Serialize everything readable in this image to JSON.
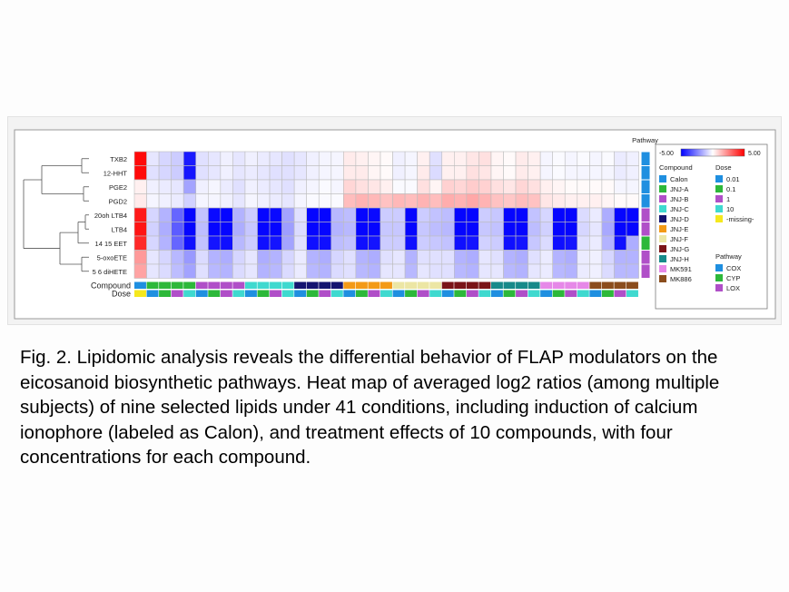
{
  "caption": "Fig. 2. Lipidomic analysis reveals the differential behavior of FLAP modulators on the eicosanoid biosynthetic pathways. Heat map of averaged log2 ratios (among multiple subjects) of nine selected lipids under 41 conditions, including induction of calcium ionophore (labeled as Calon), and treatment effects of 10 compounds, with four concentrations for each compound.",
  "colors": {
    "low": "#0000ff",
    "mid": "#ffffff",
    "high": "#ff0000",
    "compounds": {
      "Calon": "#1f8fe0",
      "JNJ-A": "#2db83a",
      "JNJ-B": "#b04fc8",
      "JNJ-C": "#3fd9cf",
      "JNJ-D": "#141470",
      "JNJ-E": "#f39a16",
      "JNJ-F": "#ece6a4",
      "JNJ-G": "#7a1417",
      "JNJ-H": "#178a8a",
      "MK591": "#e688e8",
      "MK886": "#8b4d1d"
    },
    "dose": {
      "0.01": "#1f8fe0",
      "0.1": "#2db83a",
      "1": "#b04fc8",
      "10": "#3fd9cf",
      "-missing-": "#f5e81e"
    },
    "pathway": {
      "COX": "#1f8fe0",
      "CYP": "#2db83a",
      "LOX": "#b04fc8"
    }
  },
  "chart_data": {
    "type": "heatmap",
    "title": "",
    "rows": [
      "TXB2",
      "12-HHT",
      "PGE2",
      "PGD2",
      "20oh LTB4",
      "LTB4",
      "14 15 EET",
      "5-oxoETE",
      "5 6 diHETE"
    ],
    "row_pathway": [
      "COX",
      "COX",
      "COX",
      "COX",
      "LOX",
      "LOX",
      "CYP",
      "LOX",
      "LOX"
    ],
    "column_compound": [
      "Calon",
      "JNJ-A",
      "JNJ-A",
      "JNJ-A",
      "JNJ-A",
      "JNJ-B",
      "JNJ-B",
      "JNJ-B",
      "JNJ-B",
      "JNJ-C",
      "JNJ-C",
      "JNJ-C",
      "JNJ-C",
      "JNJ-D",
      "JNJ-D",
      "JNJ-D",
      "JNJ-D",
      "JNJ-E",
      "JNJ-E",
      "JNJ-E",
      "JNJ-E",
      "JNJ-F",
      "JNJ-F",
      "JNJ-F",
      "JNJ-F",
      "JNJ-G",
      "JNJ-G",
      "JNJ-G",
      "JNJ-G",
      "JNJ-H",
      "JNJ-H",
      "JNJ-H",
      "JNJ-H",
      "MK591",
      "MK591",
      "MK591",
      "MK591",
      "MK886",
      "MK886",
      "MK886",
      "MK886"
    ],
    "column_dose": [
      "-missing-",
      "0.01",
      "0.1",
      "1",
      "10",
      "0.01",
      "0.1",
      "1",
      "10",
      "0.01",
      "0.1",
      "1",
      "10",
      "0.01",
      "0.1",
      "1",
      "10",
      "0.01",
      "0.1",
      "1",
      "10",
      "0.01",
      "0.1",
      "1",
      "10",
      "0.01",
      "0.1",
      "1",
      "10",
      "0.01",
      "0.1",
      "1",
      "10",
      "0.01",
      "0.1",
      "1",
      "10",
      "0.01",
      "0.1",
      "1",
      "10"
    ],
    "values": [
      [
        4.8,
        -0.5,
        -0.8,
        -1.0,
        -4.5,
        -0.6,
        -0.5,
        -0.3,
        -0.5,
        -0.3,
        -0.4,
        -0.5,
        -0.6,
        -0.5,
        -0.3,
        -0.2,
        -0.2,
        0.4,
        0.3,
        0.2,
        0.1,
        -0.3,
        -0.2,
        0.3,
        -0.6,
        0.3,
        0.3,
        0.5,
        0.6,
        0.2,
        0.1,
        0.4,
        0.3,
        -0.2,
        -0.1,
        -0.2,
        -0.1,
        -0.2,
        -0.1,
        -0.4,
        -0.3
      ],
      [
        4.8,
        -0.6,
        -0.8,
        -1.0,
        -4.6,
        -0.6,
        -0.5,
        -0.3,
        -0.5,
        -0.4,
        -0.5,
        -0.6,
        -0.6,
        -0.5,
        -0.3,
        -0.2,
        -0.2,
        0.4,
        0.4,
        0.2,
        0.1,
        -0.3,
        -0.2,
        0.4,
        -0.7,
        0.3,
        0.3,
        0.6,
        0.5,
        0.2,
        0.1,
        0.4,
        0.3,
        -0.2,
        -0.1,
        -0.2,
        -0.2,
        -0.2,
        -0.2,
        -0.4,
        -0.3
      ],
      [
        0.3,
        -0.3,
        -0.4,
        -0.5,
        -1.8,
        -0.3,
        -0.2,
        -0.4,
        -0.6,
        -0.3,
        -0.4,
        -0.5,
        -0.6,
        -0.3,
        -0.2,
        -0.1,
        -0.2,
        0.8,
        0.6,
        0.5,
        0.3,
        -0.1,
        -0.1,
        0.6,
        0.2,
        0.9,
        0.8,
        1.0,
        0.9,
        0.6,
        0.5,
        0.8,
        0.6,
        0.3,
        0.2,
        0.1,
        0.1,
        0.1,
        0.1,
        -0.2,
        -0.2
      ],
      [
        0.4,
        -0.2,
        -0.3,
        -0.4,
        -0.9,
        -0.2,
        -0.2,
        -0.3,
        -0.5,
        -0.2,
        -0.3,
        -0.4,
        -0.5,
        -0.2,
        -0.1,
        -0.1,
        -0.1,
        1.3,
        1.5,
        1.4,
        1.2,
        1.4,
        1.3,
        1.5,
        1.3,
        1.6,
        1.5,
        1.7,
        1.5,
        1.2,
        1.1,
        1.3,
        1.2,
        0.5,
        0.4,
        0.3,
        0.3,
        0.3,
        0.2,
        0.1,
        0.1
      ],
      [
        4.5,
        -0.8,
        -1.5,
        -3.0,
        -4.9,
        -1.2,
        -4.8,
        -4.9,
        -1.5,
        -1.0,
        -4.9,
        -4.8,
        -1.8,
        -0.6,
        -4.9,
        -4.9,
        -1.4,
        -1.3,
        -4.9,
        -4.8,
        -1.0,
        -1.0,
        -4.9,
        -1.0,
        -1.2,
        -1.3,
        -4.9,
        -4.9,
        -1.0,
        -1.1,
        -4.9,
        -4.9,
        -1.2,
        -0.8,
        -4.9,
        -4.9,
        -0.7,
        -0.4,
        -1.6,
        -4.9,
        -4.9
      ],
      [
        4.6,
        -0.9,
        -1.6,
        -3.2,
        -4.9,
        -1.3,
        -4.9,
        -4.9,
        -1.6,
        -1.1,
        -4.9,
        -4.9,
        -1.9,
        -0.7,
        -4.9,
        -4.9,
        -1.5,
        -1.4,
        -4.9,
        -4.9,
        -1.1,
        -1.1,
        -4.9,
        -1.1,
        -1.3,
        -1.4,
        -4.9,
        -4.9,
        -1.1,
        -1.2,
        -4.9,
        -4.9,
        -1.3,
        -0.9,
        -4.9,
        -4.9,
        -0.8,
        -0.5,
        -1.7,
        -4.9,
        -4.9
      ],
      [
        4.2,
        -0.8,
        -1.5,
        -3.0,
        -4.7,
        -1.2,
        -4.6,
        -4.7,
        -1.4,
        -1.0,
        -4.7,
        -4.6,
        -1.8,
        -0.6,
        -4.7,
        -4.7,
        -1.3,
        -1.2,
        -4.7,
        -4.6,
        -1.0,
        -1.0,
        -4.7,
        -1.0,
        -1.1,
        -1.2,
        -4.7,
        -4.6,
        -0.9,
        -1.0,
        -4.7,
        -4.6,
        -1.1,
        -0.7,
        -4.7,
        -4.6,
        -0.6,
        -0.4,
        -1.5,
        -4.7,
        -1.6
      ],
      [
        2.0,
        -0.5,
        -0.8,
        -1.4,
        -2.0,
        -0.7,
        -1.5,
        -1.6,
        -0.8,
        -0.5,
        -1.6,
        -1.5,
        -0.8,
        -0.4,
        -1.5,
        -1.6,
        -0.8,
        -0.6,
        -1.5,
        -1.6,
        -0.6,
        -0.5,
        -1.5,
        -0.6,
        -0.6,
        -0.6,
        -1.5,
        -1.6,
        -0.5,
        -0.6,
        -1.5,
        -1.6,
        -0.6,
        -0.4,
        -1.5,
        -1.6,
        -0.4,
        -0.3,
        -0.8,
        -1.5,
        -1.5
      ],
      [
        1.8,
        -0.5,
        -0.7,
        -1.3,
        -1.8,
        -0.6,
        -1.4,
        -1.5,
        -0.7,
        -0.5,
        -1.5,
        -1.4,
        -0.7,
        -0.4,
        -1.4,
        -1.5,
        -0.7,
        -0.6,
        -1.4,
        -1.5,
        -0.5,
        -0.5,
        -1.4,
        -0.5,
        -0.6,
        -0.6,
        -1.4,
        -1.5,
        -0.5,
        -0.5,
        -1.4,
        -1.5,
        -0.5,
        -0.4,
        -1.4,
        -1.5,
        -0.4,
        -0.3,
        -0.7,
        -1.4,
        -1.4
      ]
    ],
    "color_scale": {
      "min": -5.0,
      "max": 5.0,
      "min_label": "-5.00",
      "max_label": "5.00"
    },
    "track_labels": {
      "compound": "Compound",
      "dose": "Dose",
      "pathway": "Pathway"
    },
    "legend": {
      "compound_title": "Compound",
      "compound_entries": [
        "Calon",
        "JNJ-A",
        "JNJ-B",
        "JNJ-C",
        "JNJ-D",
        "JNJ-E",
        "JNJ-F",
        "JNJ-G",
        "JNJ-H",
        "MK591",
        "MK886"
      ],
      "dose_title": "Dose",
      "dose_entries": [
        "0.01",
        "0.1",
        "1",
        "10",
        "-missing-"
      ],
      "pathway_title": "Pathway",
      "pathway_entries": [
        "COX",
        "CYP",
        "LOX"
      ]
    }
  }
}
